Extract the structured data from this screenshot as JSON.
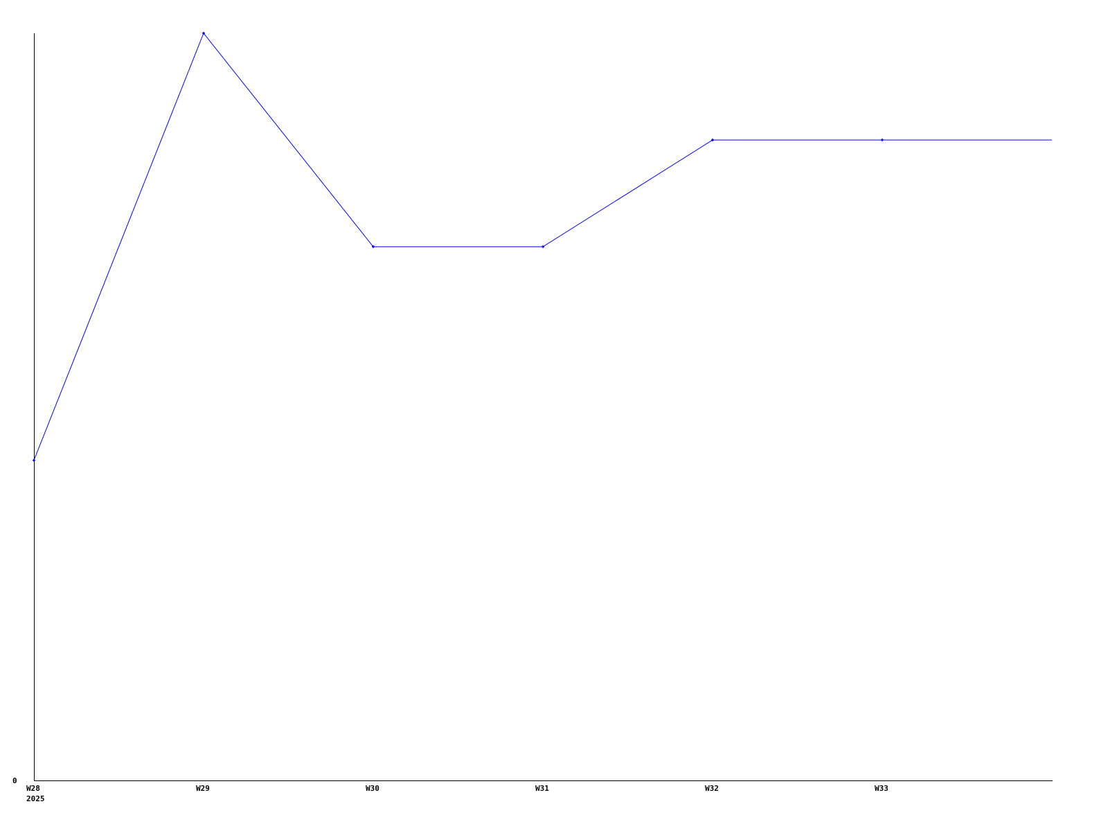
{
  "chart_data": {
    "type": "line",
    "title": "",
    "xlabel": "",
    "ylabel": "",
    "categories": [
      "W28",
      "W29",
      "W30",
      "W31",
      "W32",
      "W33"
    ],
    "x_sublabel": "2025",
    "series": [
      {
        "values": [
          3,
          7,
          5,
          5,
          6,
          6
        ],
        "color": "#0000ff"
      }
    ],
    "y_tick_labels": [
      "0"
    ],
    "ylim": [
      0,
      7
    ],
    "line_continues_past_last_point": true,
    "grid": false,
    "legend": "none",
    "axis_color": "#000000"
  }
}
